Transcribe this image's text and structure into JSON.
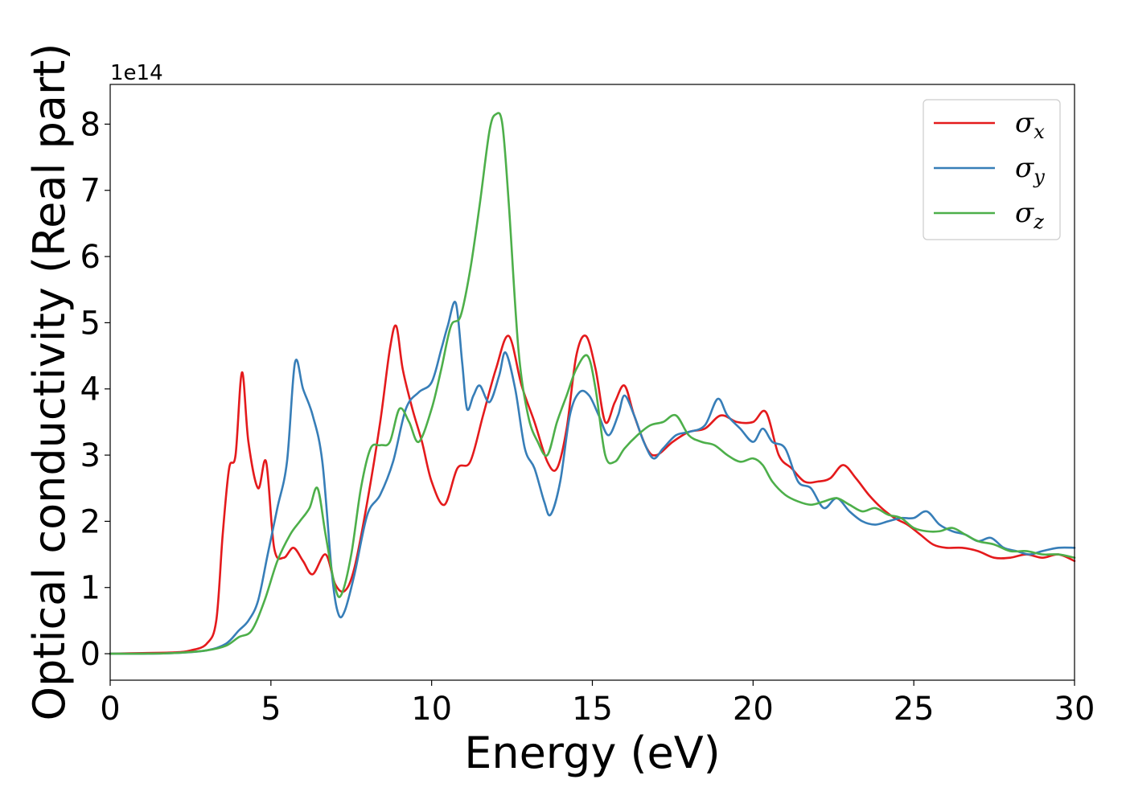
{
  "chart_data": {
    "type": "line",
    "title": "",
    "xlabel": "Energy (eV)",
    "ylabel": "Optical conductivity (Real part)",
    "y_offset_label": "1e14",
    "xlim": [
      0,
      30
    ],
    "ylim": [
      -0.4,
      8.6
    ],
    "xticks": [
      0,
      5,
      10,
      15,
      20,
      25,
      30
    ],
    "xtick_labels": [
      "0",
      "5",
      "10",
      "15",
      "20",
      "25",
      "30"
    ],
    "yticks": [
      0,
      1,
      2,
      3,
      4,
      5,
      6,
      7,
      8
    ],
    "ytick_labels": [
      "0",
      "1",
      "2",
      "3",
      "4",
      "5",
      "6",
      "7",
      "8"
    ],
    "grid": false,
    "legend": "top-right",
    "series": [
      {
        "name": "σx",
        "label_base": "σ",
        "label_sub": "x",
        "color": "#e41a1c",
        "x": [
          0,
          1,
          2,
          2.5,
          3.0,
          3.3,
          3.5,
          3.7,
          3.9,
          4.1,
          4.3,
          4.6,
          4.85,
          5.1,
          5.4,
          5.7,
          6.0,
          6.3,
          6.7,
          7.0,
          7.3,
          7.6,
          8.0,
          8.4,
          8.7,
          8.9,
          9.1,
          9.4,
          9.7,
          10.0,
          10.4,
          10.8,
          11.2,
          11.6,
          12.0,
          12.4,
          12.8,
          13.2,
          13.6,
          13.9,
          14.2,
          14.5,
          14.8,
          15.1,
          15.4,
          15.7,
          16.0,
          16.3,
          16.7,
          17.0,
          17.5,
          18.0,
          18.5,
          19.0,
          19.5,
          20.0,
          20.4,
          20.8,
          21.2,
          21.6,
          22.0,
          22.4,
          22.8,
          23.2,
          23.6,
          24.0,
          24.4,
          24.8,
          25.2,
          25.6,
          26.0,
          26.5,
          27.0,
          27.5,
          28.0,
          28.5,
          29.0,
          29.5,
          30.0
        ],
        "values": [
          0,
          0.01,
          0.02,
          0.05,
          0.15,
          0.5,
          1.8,
          2.8,
          3.0,
          4.25,
          3.2,
          2.5,
          2.9,
          1.6,
          1.45,
          1.6,
          1.4,
          1.2,
          1.5,
          1.05,
          0.95,
          1.3,
          2.3,
          3.5,
          4.6,
          4.95,
          4.3,
          3.7,
          3.2,
          2.6,
          2.25,
          2.8,
          2.9,
          3.6,
          4.3,
          4.8,
          4.05,
          3.5,
          2.9,
          2.8,
          3.4,
          4.5,
          4.8,
          4.3,
          3.5,
          3.8,
          4.05,
          3.6,
          3.1,
          3.0,
          3.2,
          3.35,
          3.4,
          3.6,
          3.5,
          3.5,
          3.65,
          3.0,
          2.8,
          2.6,
          2.6,
          2.65,
          2.85,
          2.65,
          2.4,
          2.2,
          2.05,
          1.95,
          1.8,
          1.65,
          1.6,
          1.6,
          1.55,
          1.45,
          1.45,
          1.5,
          1.45,
          1.5,
          1.4
        ]
      },
      {
        "name": "σy",
        "label_base": "σ",
        "label_sub": "y",
        "color": "#377eb8",
        "x": [
          0,
          1,
          2,
          3.0,
          3.6,
          4.0,
          4.3,
          4.6,
          4.9,
          5.2,
          5.5,
          5.75,
          6.0,
          6.3,
          6.6,
          6.9,
          7.1,
          7.3,
          7.6,
          8.0,
          8.4,
          8.8,
          9.2,
          9.6,
          10.0,
          10.3,
          10.5,
          10.75,
          10.95,
          11.1,
          11.3,
          11.5,
          11.8,
          12.1,
          12.3,
          12.6,
          12.9,
          13.2,
          13.5,
          13.7,
          14.0,
          14.3,
          14.6,
          14.9,
          15.2,
          15.5,
          15.8,
          16.0,
          16.3,
          16.6,
          16.9,
          17.2,
          17.6,
          18.0,
          18.5,
          18.9,
          19.2,
          19.6,
          20.0,
          20.3,
          20.6,
          21.0,
          21.4,
          21.8,
          22.2,
          22.6,
          23.0,
          23.4,
          23.8,
          24.2,
          24.6,
          25.0,
          25.4,
          25.8,
          26.2,
          26.6,
          27.0,
          27.4,
          27.8,
          28.2,
          28.6,
          29.0,
          29.5,
          30.0
        ],
        "values": [
          0,
          0.0,
          0.01,
          0.05,
          0.15,
          0.35,
          0.5,
          0.8,
          1.5,
          2.2,
          2.9,
          4.4,
          4.0,
          3.6,
          2.9,
          1.2,
          0.6,
          0.65,
          1.2,
          2.1,
          2.4,
          2.9,
          3.7,
          3.95,
          4.1,
          4.6,
          4.95,
          5.3,
          4.4,
          3.7,
          3.9,
          4.05,
          3.8,
          4.2,
          4.55,
          4.0,
          3.1,
          2.8,
          2.3,
          2.1,
          2.6,
          3.6,
          3.95,
          3.9,
          3.6,
          3.3,
          3.6,
          3.9,
          3.6,
          3.2,
          2.95,
          3.1,
          3.3,
          3.35,
          3.45,
          3.85,
          3.6,
          3.4,
          3.2,
          3.4,
          3.2,
          3.1,
          2.6,
          2.5,
          2.2,
          2.35,
          2.15,
          2.0,
          1.95,
          2.0,
          2.05,
          2.05,
          2.15,
          1.95,
          1.85,
          1.8,
          1.7,
          1.75,
          1.6,
          1.55,
          1.5,
          1.55,
          1.6,
          1.6
        ]
      },
      {
        "name": "σz",
        "label_base": "σ",
        "label_sub": "z",
        "color": "#4daf4a",
        "x": [
          0,
          1,
          2,
          3.0,
          3.6,
          4.0,
          4.4,
          4.8,
          5.2,
          5.6,
          5.9,
          6.2,
          6.45,
          6.7,
          7.0,
          7.2,
          7.5,
          7.8,
          8.1,
          8.4,
          8.7,
          9.0,
          9.3,
          9.6,
          10.0,
          10.3,
          10.6,
          10.9,
          11.2,
          11.5,
          11.8,
          12.0,
          12.2,
          12.4,
          12.7,
          13.0,
          13.3,
          13.6,
          13.9,
          14.2,
          14.5,
          14.85,
          15.1,
          15.4,
          15.7,
          16.0,
          16.4,
          16.8,
          17.2,
          17.6,
          18.0,
          18.4,
          18.8,
          19.2,
          19.6,
          20.0,
          20.3,
          20.6,
          21.0,
          21.4,
          21.8,
          22.2,
          22.6,
          23.0,
          23.4,
          23.8,
          24.2,
          24.6,
          25.0,
          25.4,
          25.8,
          26.2,
          26.6,
          27.0,
          27.5,
          28.0,
          28.5,
          29.0,
          29.5,
          30.0
        ],
        "values": [
          0,
          0.0,
          0.01,
          0.05,
          0.12,
          0.25,
          0.35,
          0.8,
          1.4,
          1.8,
          2.0,
          2.2,
          2.5,
          1.8,
          1.0,
          0.9,
          1.5,
          2.5,
          3.1,
          3.15,
          3.2,
          3.7,
          3.5,
          3.2,
          3.7,
          4.3,
          4.95,
          5.1,
          5.8,
          6.8,
          7.9,
          8.15,
          8.0,
          6.8,
          4.6,
          3.6,
          3.2,
          3.0,
          3.5,
          3.9,
          4.3,
          4.5,
          4.0,
          3.0,
          2.9,
          3.1,
          3.3,
          3.45,
          3.5,
          3.6,
          3.3,
          3.2,
          3.15,
          3.0,
          2.9,
          2.95,
          2.85,
          2.6,
          2.4,
          2.3,
          2.25,
          2.3,
          2.35,
          2.25,
          2.15,
          2.2,
          2.1,
          2.05,
          1.9,
          1.85,
          1.85,
          1.9,
          1.8,
          1.7,
          1.65,
          1.55,
          1.55,
          1.5,
          1.5,
          1.45
        ]
      }
    ]
  }
}
